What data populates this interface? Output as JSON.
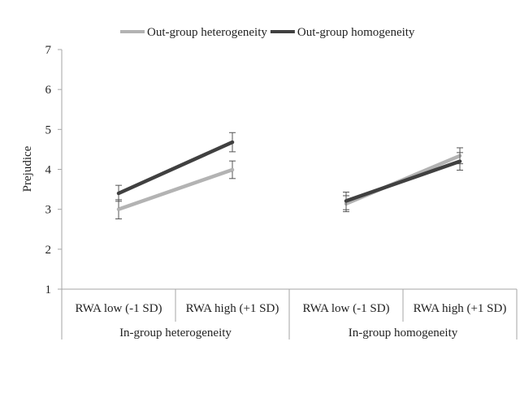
{
  "chart_data": {
    "type": "line",
    "ylabel": "Prejudice",
    "xlabel": "",
    "ylim": [
      1,
      7
    ],
    "yticks": [
      1,
      2,
      3,
      4,
      5,
      6,
      7
    ],
    "grid": false,
    "legend_position": "top",
    "groups": [
      {
        "label": "In-group heterogeneity",
        "categories": [
          "RWA low (-1 SD)",
          "RWA high (+1 SD)"
        ]
      },
      {
        "label": "In-group homogeneity",
        "categories": [
          "RWA low (-1 SD)",
          "RWA high (+1 SD)"
        ]
      }
    ],
    "series": [
      {
        "name": "Out-group heterogeneity",
        "color": "#b3b3b3",
        "values": [
          [
            3.0,
            3.99
          ],
          [
            3.14,
            4.34
          ]
        ],
        "error": [
          [
            0.24,
            0.22
          ],
          [
            0.2,
            0.2
          ]
        ]
      },
      {
        "name": "Out-group homogeneity",
        "color": "#404040",
        "values": [
          [
            3.4,
            4.68
          ],
          [
            3.21,
            4.2
          ]
        ],
        "error": [
          [
            0.2,
            0.24
          ],
          [
            0.22,
            0.22
          ]
        ]
      }
    ]
  }
}
